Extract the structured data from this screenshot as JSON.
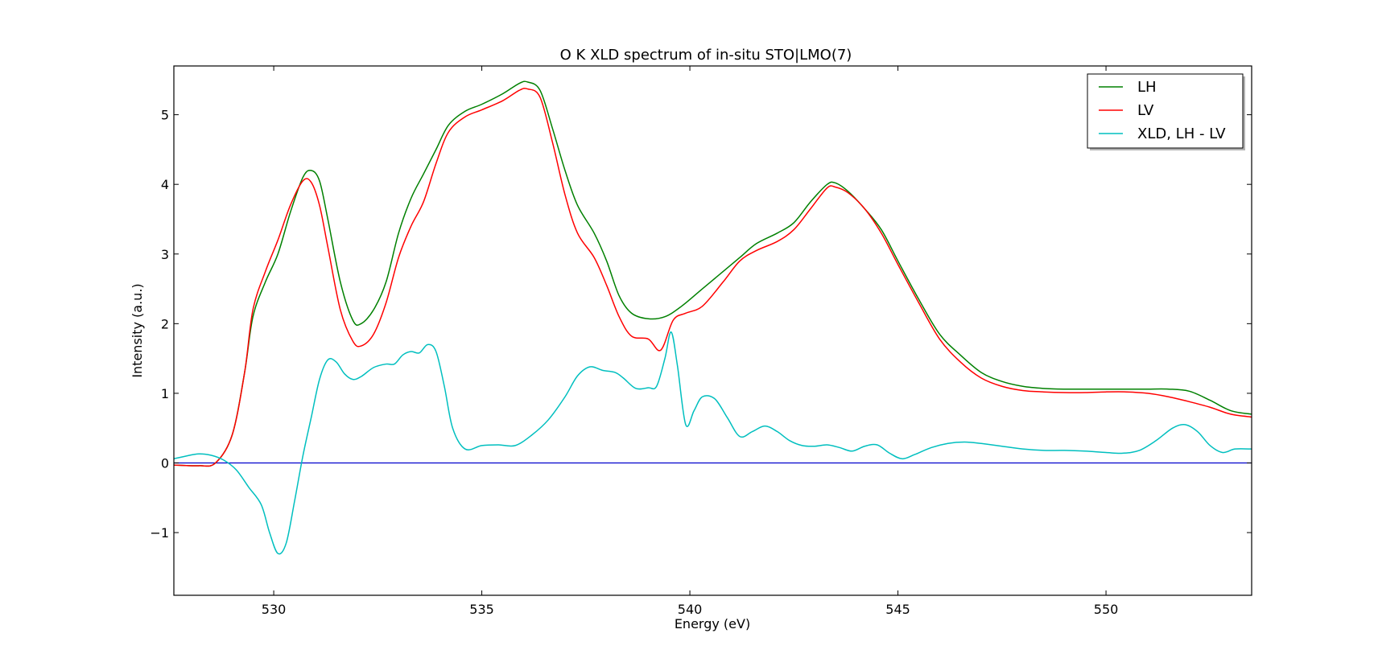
{
  "chart_data": {
    "type": "line",
    "title": "O K XLD spectrum of in-situ STO|LMO(7)",
    "xlabel": "Energy (eV)",
    "ylabel": "Intensity (a.u.)",
    "xlim": [
      527.6,
      553.5
    ],
    "ylim": [
      -1.9,
      5.7
    ],
    "xticks": [
      530,
      535,
      540,
      545,
      550
    ],
    "yticks": [
      -1,
      0,
      1,
      2,
      3,
      4,
      5
    ],
    "xtick_labels": [
      "530",
      "535",
      "540",
      "545",
      "550"
    ],
    "ytick_labels": [
      "−1",
      "0",
      "1",
      "2",
      "3",
      "4",
      "5"
    ],
    "grid": false,
    "legend_position": "top-right",
    "baseline": {
      "y": 0,
      "color": "#0000cc"
    },
    "series": [
      {
        "name": "LH",
        "color": "#008000",
        "points": [
          [
            527.6,
            -0.03
          ],
          [
            528.2,
            -0.04
          ],
          [
            528.6,
            0.0
          ],
          [
            529.0,
            0.4
          ],
          [
            529.3,
            1.3
          ],
          [
            529.5,
            2.1
          ],
          [
            529.8,
            2.6
          ],
          [
            530.1,
            3.0
          ],
          [
            530.4,
            3.6
          ],
          [
            530.7,
            4.1
          ],
          [
            530.9,
            4.2
          ],
          [
            531.1,
            4.05
          ],
          [
            531.3,
            3.5
          ],
          [
            531.6,
            2.6
          ],
          [
            531.9,
            2.05
          ],
          [
            532.1,
            2.0
          ],
          [
            532.4,
            2.2
          ],
          [
            532.7,
            2.6
          ],
          [
            533.0,
            3.3
          ],
          [
            533.3,
            3.8
          ],
          [
            533.6,
            4.15
          ],
          [
            533.9,
            4.5
          ],
          [
            534.2,
            4.85
          ],
          [
            534.6,
            5.05
          ],
          [
            535.0,
            5.15
          ],
          [
            535.5,
            5.3
          ],
          [
            535.9,
            5.45
          ],
          [
            536.1,
            5.47
          ],
          [
            536.4,
            5.35
          ],
          [
            536.7,
            4.8
          ],
          [
            537.0,
            4.2
          ],
          [
            537.3,
            3.7
          ],
          [
            537.7,
            3.3
          ],
          [
            538.0,
            2.9
          ],
          [
            538.3,
            2.4
          ],
          [
            538.6,
            2.15
          ],
          [
            539.0,
            2.07
          ],
          [
            539.4,
            2.1
          ],
          [
            539.8,
            2.25
          ],
          [
            540.3,
            2.5
          ],
          [
            540.8,
            2.75
          ],
          [
            541.2,
            2.95
          ],
          [
            541.6,
            3.15
          ],
          [
            542.1,
            3.3
          ],
          [
            542.5,
            3.45
          ],
          [
            542.9,
            3.75
          ],
          [
            543.3,
            4.0
          ],
          [
            543.5,
            4.02
          ],
          [
            543.8,
            3.9
          ],
          [
            544.2,
            3.65
          ],
          [
            544.6,
            3.35
          ],
          [
            545.0,
            2.9
          ],
          [
            545.5,
            2.35
          ],
          [
            546.0,
            1.85
          ],
          [
            546.5,
            1.55
          ],
          [
            547.0,
            1.3
          ],
          [
            547.5,
            1.17
          ],
          [
            548.0,
            1.1
          ],
          [
            548.5,
            1.07
          ],
          [
            549.0,
            1.06
          ],
          [
            549.5,
            1.06
          ],
          [
            550.0,
            1.06
          ],
          [
            550.5,
            1.06
          ],
          [
            551.0,
            1.06
          ],
          [
            551.5,
            1.06
          ],
          [
            552.0,
            1.03
          ],
          [
            552.5,
            0.9
          ],
          [
            553.0,
            0.75
          ],
          [
            553.5,
            0.7
          ]
        ]
      },
      {
        "name": "LV",
        "color": "#ff0000",
        "points": [
          [
            527.6,
            -0.03
          ],
          [
            528.2,
            -0.04
          ],
          [
            528.6,
            0.0
          ],
          [
            529.0,
            0.4
          ],
          [
            529.3,
            1.3
          ],
          [
            529.5,
            2.2
          ],
          [
            529.8,
            2.75
          ],
          [
            530.1,
            3.2
          ],
          [
            530.4,
            3.7
          ],
          [
            530.7,
            4.05
          ],
          [
            530.9,
            4.03
          ],
          [
            531.1,
            3.7
          ],
          [
            531.3,
            3.1
          ],
          [
            531.6,
            2.2
          ],
          [
            531.9,
            1.75
          ],
          [
            532.1,
            1.68
          ],
          [
            532.4,
            1.85
          ],
          [
            532.7,
            2.3
          ],
          [
            533.0,
            2.95
          ],
          [
            533.3,
            3.4
          ],
          [
            533.6,
            3.75
          ],
          [
            533.9,
            4.3
          ],
          [
            534.2,
            4.75
          ],
          [
            534.6,
            4.97
          ],
          [
            535.0,
            5.07
          ],
          [
            535.5,
            5.2
          ],
          [
            535.9,
            5.35
          ],
          [
            536.1,
            5.37
          ],
          [
            536.4,
            5.25
          ],
          [
            536.7,
            4.6
          ],
          [
            537.0,
            3.85
          ],
          [
            537.3,
            3.3
          ],
          [
            537.7,
            2.95
          ],
          [
            538.0,
            2.55
          ],
          [
            538.3,
            2.1
          ],
          [
            538.6,
            1.82
          ],
          [
            539.0,
            1.78
          ],
          [
            539.3,
            1.62
          ],
          [
            539.6,
            2.05
          ],
          [
            539.9,
            2.15
          ],
          [
            540.3,
            2.25
          ],
          [
            540.8,
            2.6
          ],
          [
            541.2,
            2.9
          ],
          [
            541.6,
            3.05
          ],
          [
            542.1,
            3.18
          ],
          [
            542.5,
            3.35
          ],
          [
            542.9,
            3.65
          ],
          [
            543.3,
            3.95
          ],
          [
            543.5,
            3.96
          ],
          [
            543.8,
            3.88
          ],
          [
            544.2,
            3.65
          ],
          [
            544.6,
            3.3
          ],
          [
            545.0,
            2.85
          ],
          [
            545.5,
            2.3
          ],
          [
            546.0,
            1.78
          ],
          [
            546.5,
            1.45
          ],
          [
            547.0,
            1.22
          ],
          [
            547.5,
            1.1
          ],
          [
            548.0,
            1.04
          ],
          [
            548.5,
            1.02
          ],
          [
            549.0,
            1.01
          ],
          [
            549.5,
            1.01
          ],
          [
            550.0,
            1.02
          ],
          [
            550.5,
            1.02
          ],
          [
            551.0,
            1.0
          ],
          [
            551.5,
            0.95
          ],
          [
            552.0,
            0.88
          ],
          [
            552.5,
            0.8
          ],
          [
            553.0,
            0.7
          ],
          [
            553.5,
            0.66
          ]
        ]
      },
      {
        "name": "XLD, LH - LV",
        "color": "#00bfbf",
        "points": [
          [
            527.6,
            0.06
          ],
          [
            527.9,
            0.1
          ],
          [
            528.2,
            0.13
          ],
          [
            528.5,
            0.11
          ],
          [
            528.8,
            0.04
          ],
          [
            529.1,
            -0.1
          ],
          [
            529.4,
            -0.35
          ],
          [
            529.7,
            -0.6
          ],
          [
            529.9,
            -1.0
          ],
          [
            530.1,
            -1.3
          ],
          [
            530.3,
            -1.15
          ],
          [
            530.5,
            -0.55
          ],
          [
            530.7,
            0.1
          ],
          [
            530.9,
            0.65
          ],
          [
            531.1,
            1.2
          ],
          [
            531.3,
            1.48
          ],
          [
            531.5,
            1.45
          ],
          [
            531.7,
            1.28
          ],
          [
            531.9,
            1.2
          ],
          [
            532.1,
            1.24
          ],
          [
            532.4,
            1.37
          ],
          [
            532.7,
            1.42
          ],
          [
            532.9,
            1.42
          ],
          [
            533.1,
            1.55
          ],
          [
            533.3,
            1.6
          ],
          [
            533.5,
            1.58
          ],
          [
            533.7,
            1.7
          ],
          [
            533.9,
            1.6
          ],
          [
            534.1,
            1.1
          ],
          [
            534.3,
            0.5
          ],
          [
            534.6,
            0.2
          ],
          [
            535.0,
            0.25
          ],
          [
            535.4,
            0.26
          ],
          [
            535.8,
            0.25
          ],
          [
            536.2,
            0.4
          ],
          [
            536.6,
            0.62
          ],
          [
            537.0,
            0.95
          ],
          [
            537.3,
            1.25
          ],
          [
            537.6,
            1.38
          ],
          [
            537.9,
            1.33
          ],
          [
            538.2,
            1.3
          ],
          [
            538.4,
            1.22
          ],
          [
            538.7,
            1.07
          ],
          [
            539.0,
            1.08
          ],
          [
            539.2,
            1.1
          ],
          [
            539.4,
            1.5
          ],
          [
            539.55,
            1.88
          ],
          [
            539.7,
            1.4
          ],
          [
            539.9,
            0.55
          ],
          [
            540.1,
            0.75
          ],
          [
            540.3,
            0.95
          ],
          [
            540.6,
            0.92
          ],
          [
            540.9,
            0.65
          ],
          [
            541.2,
            0.38
          ],
          [
            541.5,
            0.45
          ],
          [
            541.8,
            0.53
          ],
          [
            542.1,
            0.45
          ],
          [
            542.4,
            0.32
          ],
          [
            542.7,
            0.25
          ],
          [
            543.0,
            0.24
          ],
          [
            543.3,
            0.26
          ],
          [
            543.6,
            0.22
          ],
          [
            543.9,
            0.17
          ],
          [
            544.2,
            0.24
          ],
          [
            544.5,
            0.26
          ],
          [
            544.8,
            0.14
          ],
          [
            545.1,
            0.06
          ],
          [
            545.4,
            0.12
          ],
          [
            545.8,
            0.22
          ],
          [
            546.2,
            0.28
          ],
          [
            546.6,
            0.3
          ],
          [
            547.0,
            0.28
          ],
          [
            547.5,
            0.24
          ],
          [
            548.0,
            0.2
          ],
          [
            548.5,
            0.18
          ],
          [
            549.0,
            0.18
          ],
          [
            549.5,
            0.17
          ],
          [
            550.0,
            0.15
          ],
          [
            550.4,
            0.14
          ],
          [
            550.8,
            0.18
          ],
          [
            551.2,
            0.32
          ],
          [
            551.6,
            0.5
          ],
          [
            551.9,
            0.55
          ],
          [
            552.2,
            0.45
          ],
          [
            552.5,
            0.25
          ],
          [
            552.8,
            0.15
          ],
          [
            553.1,
            0.2
          ],
          [
            553.5,
            0.2
          ]
        ]
      }
    ]
  }
}
